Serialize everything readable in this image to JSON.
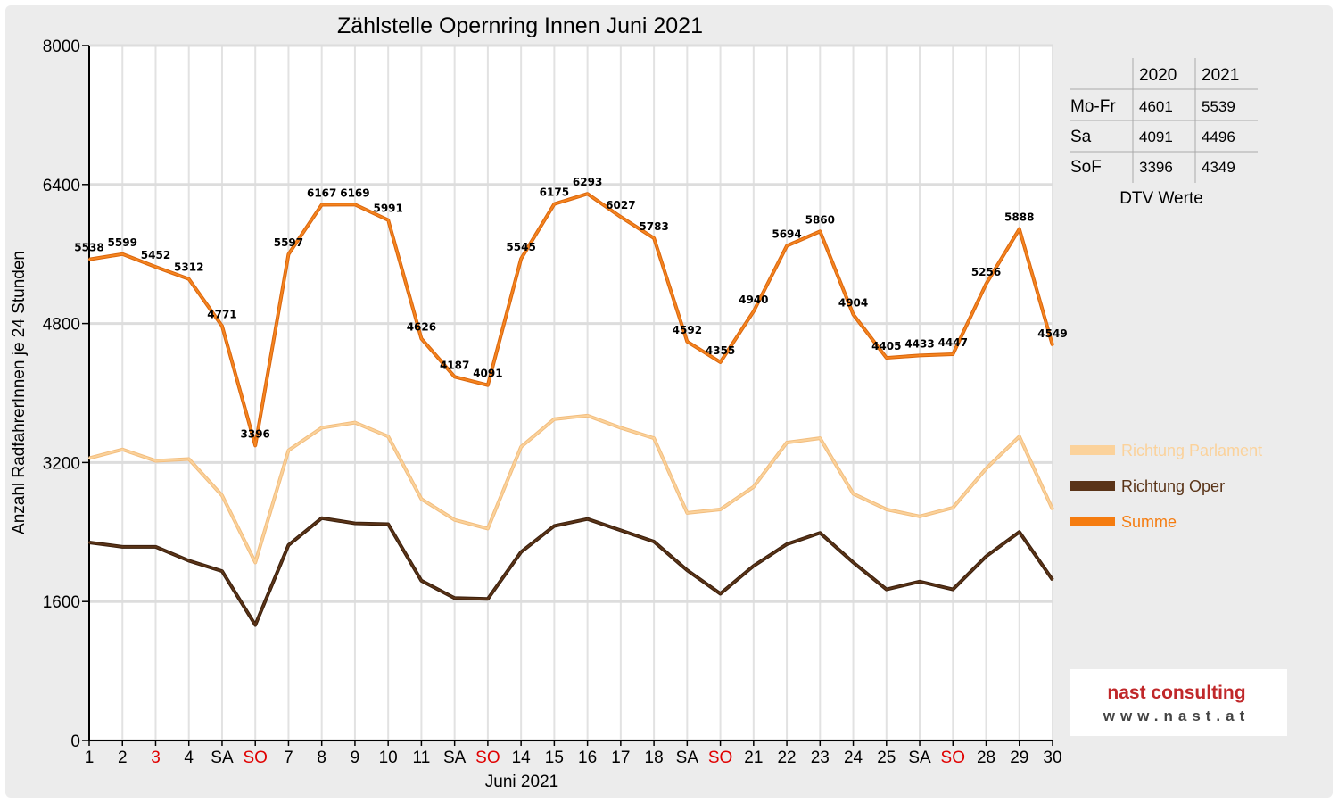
{
  "chart_data": {
    "type": "line",
    "title": "Zählstelle Opernring Innen Juni 2021",
    "xlabel": "Juni 2021",
    "ylabel": "Anzahl RadfahrerInnen je 24 Stunden",
    "ylim": [
      0,
      8000
    ],
    "yticks": [
      "0",
      "1600",
      "3200",
      "4800",
      "6400",
      "8000"
    ],
    "grid": true,
    "categories": [
      "1",
      "2",
      "3",
      "4",
      "SA",
      "SO",
      "7",
      "8",
      "9",
      "10",
      "11",
      "SA",
      "SO",
      "14",
      "15",
      "16",
      "17",
      "18",
      "SA",
      "SO",
      "21",
      "22",
      "23",
      "24",
      "25",
      "SA",
      "SO",
      "28",
      "29",
      "30"
    ],
    "red_categories": [
      2,
      5,
      12,
      19,
      26
    ],
    "legend_position": "right",
    "series": [
      {
        "name": "Summe",
        "color": "#f5841f",
        "values": [
          5538,
          5599,
          5452,
          5312,
          4771,
          3396,
          5597,
          6167,
          6169,
          5991,
          4626,
          4187,
          4091,
          5545,
          6175,
          6293,
          6027,
          5783,
          4592,
          4355,
          4940,
          5694,
          5860,
          4904,
          4405,
          4433,
          4447,
          5256,
          5888,
          4549
        ],
        "labels": [
          "5538",
          "5599",
          "5452",
          "5312",
          "4771",
          "3396",
          "5597",
          "6167",
          "6169",
          "5991",
          "4626",
          "4187",
          "4091",
          "5545",
          "6175",
          "6293",
          "6027",
          "5783",
          "4592",
          "4355",
          "4940",
          "5694",
          "5860",
          "4904",
          "4405",
          "4433",
          "4447",
          "5256",
          "5888",
          "4549"
        ]
      },
      {
        "name": "Richtung Parlament",
        "color": "#fbd29b",
        "values": [
          3250,
          3350,
          3220,
          3240,
          2820,
          2050,
          3340,
          3600,
          3660,
          3500,
          2780,
          2540,
          2440,
          3380,
          3700,
          3740,
          3600,
          3480,
          2620,
          2660,
          2920,
          3430,
          3480,
          2840,
          2660,
          2580,
          2680,
          3130,
          3500,
          2660
        ]
      },
      {
        "name": "Richtung Oper",
        "color": "#5a3418",
        "values": [
          2280,
          2230,
          2230,
          2070,
          1950,
          1330,
          2250,
          2560,
          2500,
          2490,
          1840,
          1640,
          1630,
          2170,
          2470,
          2550,
          2420,
          2290,
          1960,
          1690,
          2010,
          2260,
          2390,
          2050,
          1740,
          1830,
          1740,
          2120,
          2400,
          1850
        ]
      }
    ],
    "dtv_table": {
      "caption": "DTV Werte",
      "columns": [
        "2020",
        "2021"
      ],
      "rows": [
        {
          "label": "Mo-Fr",
          "values": [
            "4601",
            "5539"
          ]
        },
        {
          "label": "Sa",
          "values": [
            "4091",
            "4496"
          ]
        },
        {
          "label": "SoF",
          "values": [
            "3396",
            "4349"
          ]
        }
      ]
    }
  },
  "logo": {
    "line1": "nast consulting",
    "line2": "www.nast.at"
  }
}
